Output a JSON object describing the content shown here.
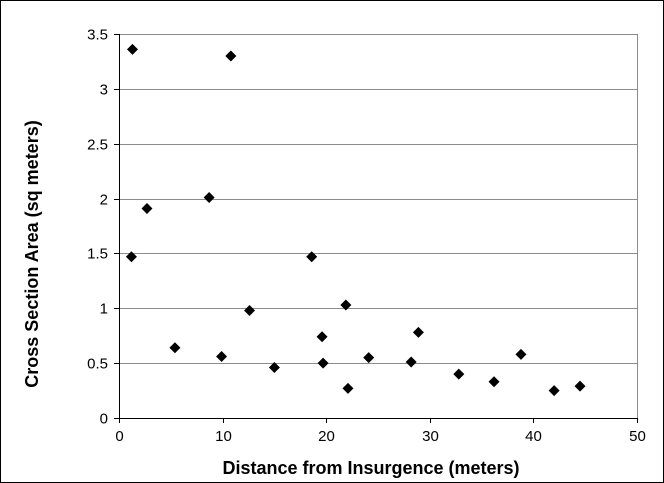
{
  "chart_data": {
    "type": "scatter",
    "title": "",
    "xlabel": "Distance from Insurgence (meters)",
    "ylabel": "Cross Section Area (sq meters)",
    "xlim": [
      0,
      50
    ],
    "ylim": [
      0,
      3.5
    ],
    "x_ticks": [
      0,
      10,
      20,
      30,
      40,
      50
    ],
    "y_ticks": [
      0,
      0.5,
      1,
      1.5,
      2,
      2.5,
      3,
      3.5
    ],
    "x_tick_labels": [
      "0",
      "10",
      "20",
      "30",
      "40",
      "50"
    ],
    "y_tick_labels": [
      "0",
      "0.5",
      "1",
      "1.5",
      "2",
      "2.5",
      "3",
      "3.5"
    ],
    "grid": "horizontal",
    "legend": "none",
    "marker": "diamond",
    "marker_color": "#000000",
    "series": [
      {
        "points": [
          {
            "x": 1.3,
            "y": 3.36
          },
          {
            "x": 1.2,
            "y": 1.47
          },
          {
            "x": 2.7,
            "y": 1.91
          },
          {
            "x": 5.4,
            "y": 0.64
          },
          {
            "x": 8.7,
            "y": 2.01
          },
          {
            "x": 9.9,
            "y": 0.56
          },
          {
            "x": 10.8,
            "y": 3.3
          },
          {
            "x": 12.6,
            "y": 0.98
          },
          {
            "x": 15.0,
            "y": 0.46
          },
          {
            "x": 18.6,
            "y": 1.47
          },
          {
            "x": 19.6,
            "y": 0.74
          },
          {
            "x": 19.7,
            "y": 0.5
          },
          {
            "x": 21.9,
            "y": 1.03
          },
          {
            "x": 22.1,
            "y": 0.27
          },
          {
            "x": 24.1,
            "y": 0.55
          },
          {
            "x": 28.2,
            "y": 0.51
          },
          {
            "x": 28.9,
            "y": 0.78
          },
          {
            "x": 32.8,
            "y": 0.4
          },
          {
            "x": 36.2,
            "y": 0.33
          },
          {
            "x": 38.8,
            "y": 0.58
          },
          {
            "x": 42.0,
            "y": 0.25
          },
          {
            "x": 44.5,
            "y": 0.29
          }
        ]
      }
    ]
  }
}
